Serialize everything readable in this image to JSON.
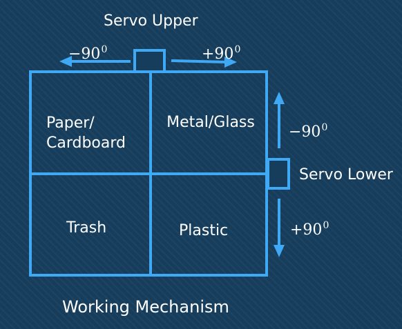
{
  "diagram": {
    "title": "Working Mechanism",
    "servo_upper": {
      "label": "Servo Upper",
      "left_angle": "−90",
      "right_angle": "+90",
      "exponent": "0"
    },
    "servo_lower": {
      "label": "Servo Lower",
      "up_angle": "−90",
      "down_angle": "+90",
      "exponent": "0"
    },
    "bins": {
      "top_left_line1": "Paper/",
      "top_left_line2": "Cardboard",
      "top_right": "Metal/Glass",
      "bottom_left": "Trash",
      "bottom_right": "Plastic"
    },
    "colors": {
      "background": "#163d5c",
      "line": "#3fa9f5",
      "text": "#ffffff"
    }
  }
}
